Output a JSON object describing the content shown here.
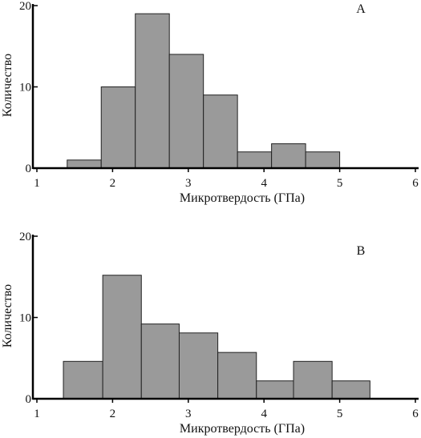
{
  "chart_data": [
    {
      "type": "bar",
      "panel_label": "A",
      "ylabel": "Количество",
      "xlabel": "Микротвердость (ГПа)",
      "xlim": [
        1,
        6
      ],
      "ylim": [
        0,
        20
      ],
      "xticks": [
        1,
        2,
        3,
        4,
        5,
        6
      ],
      "yticks": [
        0,
        10,
        20
      ],
      "bins": [
        {
          "x0": 1.4,
          "x1": 1.85,
          "value": 1
        },
        {
          "x0": 1.85,
          "x1": 2.3,
          "value": 10
        },
        {
          "x0": 2.3,
          "x1": 2.75,
          "value": 19
        },
        {
          "x0": 2.75,
          "x1": 3.2,
          "value": 14
        },
        {
          "x0": 3.2,
          "x1": 3.65,
          "value": 9
        },
        {
          "x0": 3.65,
          "x1": 4.1,
          "value": 2
        },
        {
          "x0": 4.1,
          "x1": 4.55,
          "value": 3
        },
        {
          "x0": 4.55,
          "x1": 5.0,
          "value": 2
        }
      ]
    },
    {
      "type": "bar",
      "panel_label": "B",
      "ylabel": "Количество",
      "xlabel": "Микротвердость (ГПа)",
      "xlim": [
        1,
        6
      ],
      "ylim": [
        0,
        20
      ],
      "xticks": [
        1,
        2,
        3,
        4,
        5,
        6
      ],
      "yticks": [
        0,
        10,
        20
      ],
      "bins": [
        {
          "x0": 1.35,
          "x1": 1.87,
          "value": 4.6
        },
        {
          "x0": 1.87,
          "x1": 2.38,
          "value": 15.2
        },
        {
          "x0": 2.38,
          "x1": 2.88,
          "value": 9.2
        },
        {
          "x0": 2.88,
          "x1": 3.39,
          "value": 8.1
        },
        {
          "x0": 3.39,
          "x1": 3.9,
          "value": 5.7
        },
        {
          "x0": 3.9,
          "x1": 4.39,
          "value": 2.2
        },
        {
          "x0": 4.39,
          "x1": 4.9,
          "value": 4.6
        },
        {
          "x0": 4.9,
          "x1": 5.4,
          "value": 2.2
        }
      ]
    }
  ]
}
